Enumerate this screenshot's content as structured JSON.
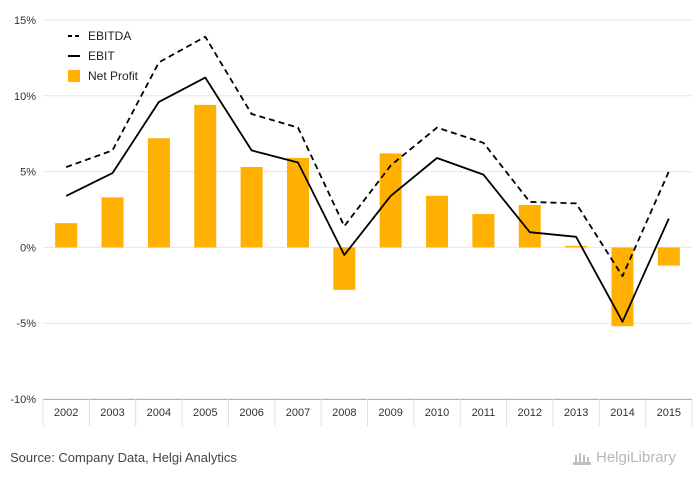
{
  "chart_data": {
    "type": "bar",
    "title": "",
    "xlabel": "",
    "ylabel": "",
    "categories": [
      "2002",
      "2003",
      "2004",
      "2005",
      "2006",
      "2007",
      "2008",
      "2009",
      "2010",
      "2011",
      "2012",
      "2013",
      "2014",
      "2015"
    ],
    "ylim": [
      -10,
      15
    ],
    "yticks": [
      -10,
      -5,
      0,
      5,
      10,
      15
    ],
    "ytick_labels": [
      "-10%",
      "-5%",
      "0%",
      "5%",
      "10%",
      "15%"
    ],
    "grid": true,
    "legend_position": "top-left",
    "series": [
      {
        "name": "EBITDA",
        "type": "line",
        "style": "dashed",
        "color": "#000000",
        "values": [
          5.3,
          6.4,
          12.2,
          13.9,
          8.8,
          7.9,
          1.4,
          5.4,
          7.9,
          6.9,
          3.0,
          2.9,
          -1.9,
          5.0
        ]
      },
      {
        "name": "EBIT",
        "type": "line",
        "style": "solid",
        "color": "#000000",
        "values": [
          3.4,
          4.9,
          9.6,
          11.2,
          6.4,
          5.6,
          -0.5,
          3.4,
          5.9,
          4.8,
          1.0,
          0.7,
          -4.9,
          1.9
        ]
      },
      {
        "name": "Net Profit",
        "type": "bar",
        "color": "#ffb000",
        "values": [
          1.6,
          3.3,
          7.2,
          9.4,
          5.3,
          5.9,
          -2.8,
          6.2,
          3.4,
          2.2,
          2.8,
          0.1,
          -5.2,
          -1.2
        ]
      }
    ]
  },
  "footer": {
    "source": "Source: Company Data, Helgi Analytics",
    "logo_text": "HelgiLibrary"
  }
}
